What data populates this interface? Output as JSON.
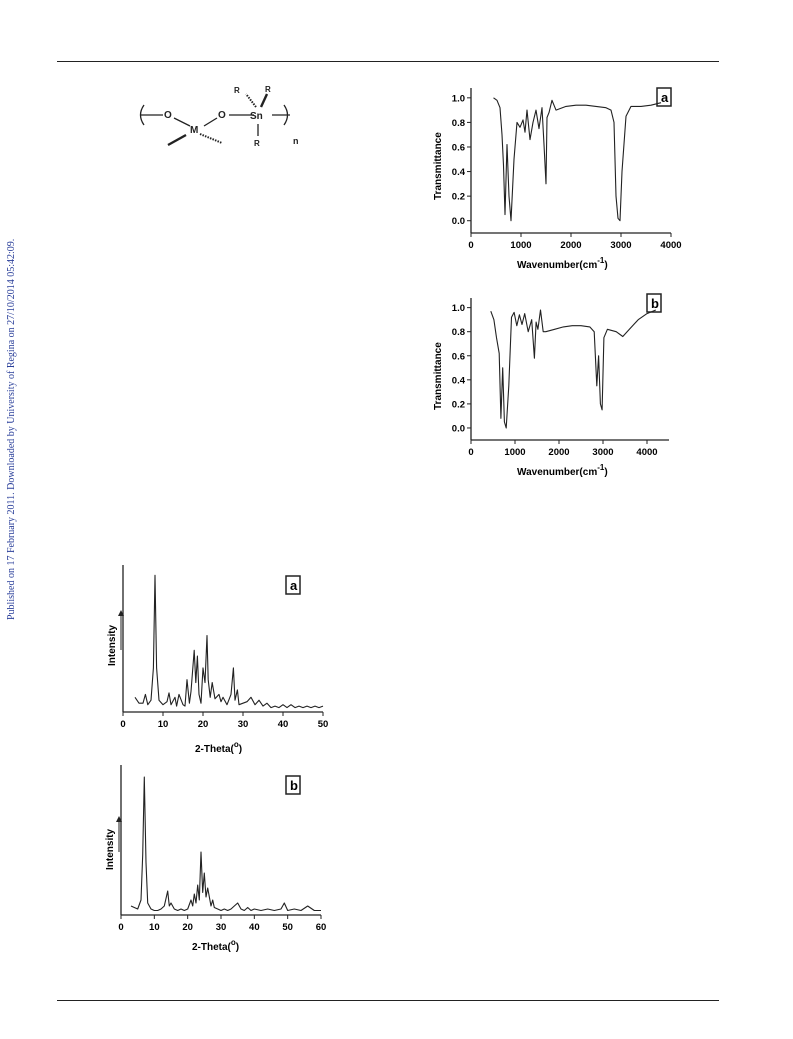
{
  "sidebar_note": "Published on 17 February 2011. Downloaded by University of Regina on 27/10/2014 05:42:09.",
  "structure": {
    "atoms": [
      "O",
      "O",
      "M",
      "Sn",
      "R",
      "R",
      "R"
    ],
    "subscript": "n"
  },
  "chart_data": [
    {
      "type": "line",
      "panel_label": "a",
      "xlabel": "Wavenumber(cm",
      "xlabel_sup": "-1",
      "xlabel_end": ")",
      "ylabel": "Transmittance",
      "xlim": [
        0,
        4000
      ],
      "ylim": [
        -0.1,
        1.08
      ],
      "xticks": [
        0,
        1000,
        2000,
        3000,
        4000
      ],
      "yticks": [
        0.0,
        0.2,
        0.4,
        0.6,
        0.8,
        1.0
      ],
      "x": [
        450,
        520,
        580,
        620,
        650,
        680,
        720,
        760,
        800,
        860,
        920,
        980,
        1040,
        1080,
        1120,
        1180,
        1240,
        1300,
        1360,
        1420,
        1460,
        1500,
        1520,
        1560,
        1620,
        1700,
        1900,
        2100,
        2300,
        2500,
        2700,
        2800,
        2860,
        2900,
        2940,
        2980,
        3020,
        3100,
        3200,
        3400,
        3600,
        3800
      ],
      "y": [
        1.0,
        0.98,
        0.92,
        0.7,
        0.45,
        0.05,
        0.62,
        0.2,
        0.0,
        0.5,
        0.8,
        0.76,
        0.82,
        0.72,
        0.9,
        0.66,
        0.8,
        0.9,
        0.75,
        0.92,
        0.62,
        0.3,
        0.84,
        0.88,
        0.98,
        0.9,
        0.93,
        0.94,
        0.94,
        0.93,
        0.92,
        0.9,
        0.8,
        0.2,
        0.02,
        0.0,
        0.4,
        0.85,
        0.93,
        0.93,
        0.94,
        0.96
      ]
    },
    {
      "type": "line",
      "panel_label": "b",
      "xlabel": "Wavenumber(cm",
      "xlabel_sup": "-1",
      "xlabel_end": ")",
      "ylabel": "Transmittance",
      "xlim": [
        0,
        4500
      ],
      "ylim": [
        -0.1,
        1.08
      ],
      "xticks": [
        0,
        1000,
        2000,
        3000,
        4000
      ],
      "yticks": [
        0.0,
        0.2,
        0.4,
        0.6,
        0.8,
        1.0
      ],
      "x": [
        450,
        520,
        580,
        640,
        680,
        720,
        760,
        800,
        860,
        920,
        980,
        1040,
        1100,
        1160,
        1220,
        1300,
        1380,
        1440,
        1480,
        1520,
        1580,
        1640,
        1700,
        1900,
        2100,
        2300,
        2500,
        2700,
        2800,
        2860,
        2900,
        2940,
        2980,
        3020,
        3100,
        3300,
        3450,
        3600,
        3800,
        4000,
        4200
      ],
      "y": [
        0.97,
        0.9,
        0.75,
        0.62,
        0.08,
        0.5,
        0.05,
        0.0,
        0.35,
        0.92,
        0.96,
        0.85,
        0.94,
        0.86,
        0.95,
        0.8,
        0.9,
        0.58,
        0.88,
        0.82,
        0.98,
        0.8,
        0.8,
        0.82,
        0.84,
        0.85,
        0.85,
        0.84,
        0.8,
        0.35,
        0.6,
        0.2,
        0.15,
        0.75,
        0.82,
        0.8,
        0.76,
        0.82,
        0.9,
        0.95,
        0.98
      ]
    },
    {
      "type": "line",
      "panel_label": "a",
      "xlabel": "2-Theta(",
      "xlabel_sup": "o",
      "xlabel_end": ")",
      "ylabel": "Intensity",
      "xlim": [
        0,
        50
      ],
      "ylim": [
        0,
        100
      ],
      "xticks": [
        0,
        10,
        20,
        30,
        40,
        50
      ],
      "x": [
        3,
        4,
        5,
        5.6,
        6.2,
        7,
        7.6,
        8,
        8.4,
        9,
        10,
        11,
        11.5,
        12,
        13,
        13.4,
        14,
        15,
        15.5,
        16,
        16.6,
        17,
        17.8,
        18.2,
        18.6,
        19,
        19.5,
        20,
        20.5,
        21,
        21.3,
        21.8,
        22.3,
        23,
        24,
        24.5,
        25,
        26,
        27,
        27.6,
        28,
        28.6,
        29,
        30,
        31,
        32,
        33,
        34,
        35,
        36,
        37,
        38,
        39,
        40,
        41,
        42,
        43,
        44,
        45,
        46,
        47,
        48,
        49,
        50
      ],
      "y": [
        10,
        6,
        6,
        12,
        5,
        8,
        30,
        93,
        30,
        8,
        5,
        7,
        13,
        5,
        10,
        4,
        12,
        5,
        4,
        22,
        6,
        14,
        42,
        20,
        38,
        12,
        6,
        30,
        20,
        52,
        22,
        10,
        20,
        9,
        12,
        7,
        10,
        5,
        12,
        30,
        8,
        15,
        5,
        6,
        7,
        10,
        5,
        8,
        4,
        6,
        3,
        4,
        3,
        5,
        3,
        5,
        3,
        4,
        3,
        4,
        3,
        4,
        3,
        4
      ]
    },
    {
      "type": "line",
      "panel_label": "b",
      "xlabel": "2-Theta(",
      "xlabel_sup": "o",
      "xlabel_end": ")",
      "ylabel": "Intensity",
      "xlim": [
        0,
        60
      ],
      "ylim": [
        0,
        100
      ],
      "xticks": [
        0,
        10,
        20,
        30,
        40,
        50,
        60
      ],
      "x": [
        3,
        4,
        5,
        6,
        6.5,
        7,
        7.5,
        8,
        9,
        10,
        11,
        12,
        13,
        14,
        14.5,
        15,
        16,
        17,
        18,
        19,
        20,
        21,
        21.5,
        22,
        22.5,
        23,
        23.5,
        24,
        24.5,
        25,
        25.5,
        26,
        27,
        27.5,
        28,
        29,
        30,
        31,
        32,
        33,
        34,
        35,
        36,
        37,
        38,
        39,
        40,
        42,
        44,
        46,
        48,
        49,
        50,
        52,
        54,
        56,
        58,
        60
      ],
      "y": [
        6,
        5,
        4,
        10,
        40,
        92,
        35,
        8,
        4,
        3,
        3,
        4,
        6,
        16,
        6,
        8,
        4,
        3,
        4,
        3,
        4,
        10,
        6,
        14,
        8,
        20,
        10,
        42,
        15,
        28,
        12,
        18,
        6,
        10,
        5,
        4,
        3,
        4,
        3,
        4,
        6,
        8,
        4,
        3,
        5,
        3,
        4,
        3,
        4,
        3,
        4,
        8,
        3,
        4,
        3,
        6,
        3,
        3
      ]
    }
  ]
}
